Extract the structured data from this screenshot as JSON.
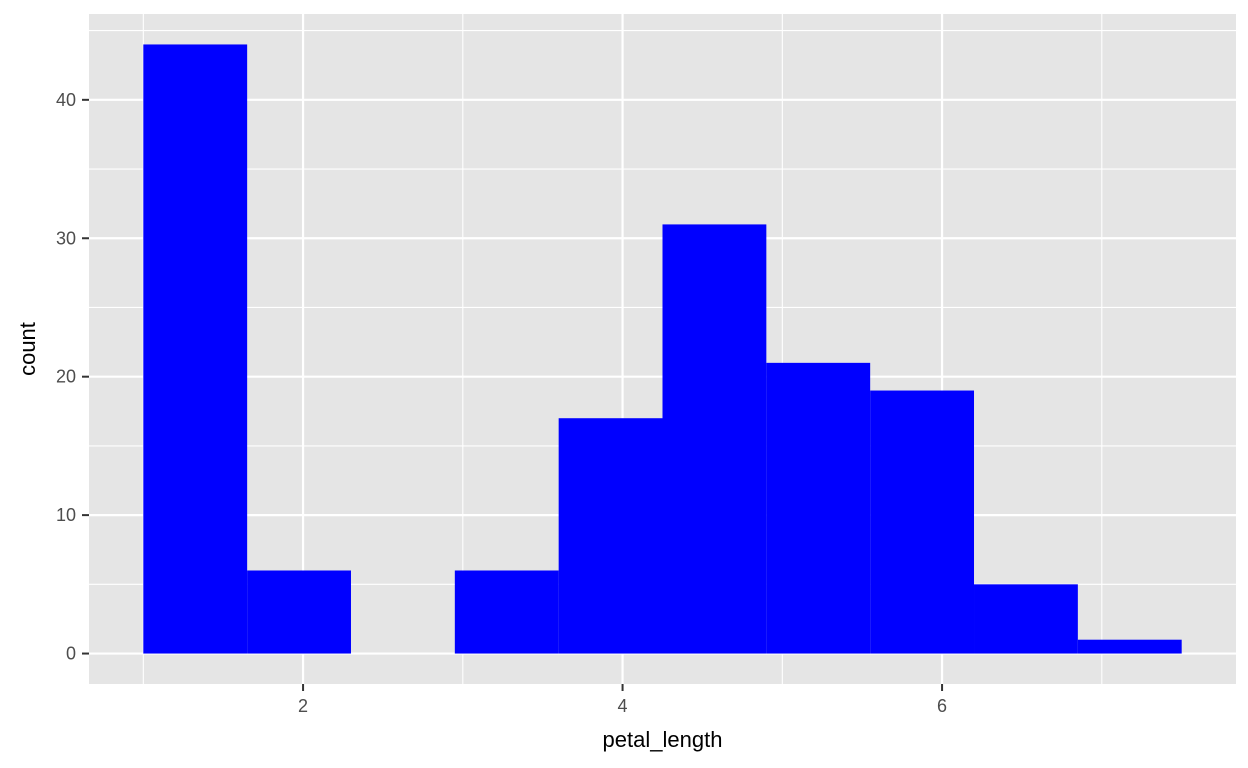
{
  "chart_data": {
    "type": "bar",
    "subtype": "histogram",
    "xlabel": "petal_length",
    "ylabel": "count",
    "bins": [
      {
        "x0": 1.0,
        "x1": 1.65,
        "count": 44
      },
      {
        "x0": 1.65,
        "x1": 2.3,
        "count": 6
      },
      {
        "x0": 2.3,
        "x1": 2.95,
        "count": 0
      },
      {
        "x0": 2.95,
        "x1": 3.6,
        "count": 6
      },
      {
        "x0": 3.6,
        "x1": 4.25,
        "count": 17
      },
      {
        "x0": 4.25,
        "x1": 4.9,
        "count": 31
      },
      {
        "x0": 4.9,
        "x1": 5.55,
        "count": 21
      },
      {
        "x0": 5.55,
        "x1": 6.2,
        "count": 19
      },
      {
        "x0": 6.2,
        "x1": 6.85,
        "count": 5
      },
      {
        "x0": 6.85,
        "x1": 7.5,
        "count": 1
      }
    ],
    "xlim": [
      0.66,
      7.84
    ],
    "ylim": [
      -2.2,
      46.2
    ],
    "x_ticks": [
      2,
      4,
      6
    ],
    "x_minor_ticks": [
      1,
      3,
      5,
      7
    ],
    "y_ticks": [
      0,
      10,
      20,
      30,
      40
    ],
    "y_minor_ticks": [
      5,
      15,
      25,
      35,
      45
    ],
    "bar_color": "#0000ff",
    "panel_background": "#e5e5e5",
    "grid_color": "#ffffff",
    "grid": true,
    "legend": "none"
  }
}
